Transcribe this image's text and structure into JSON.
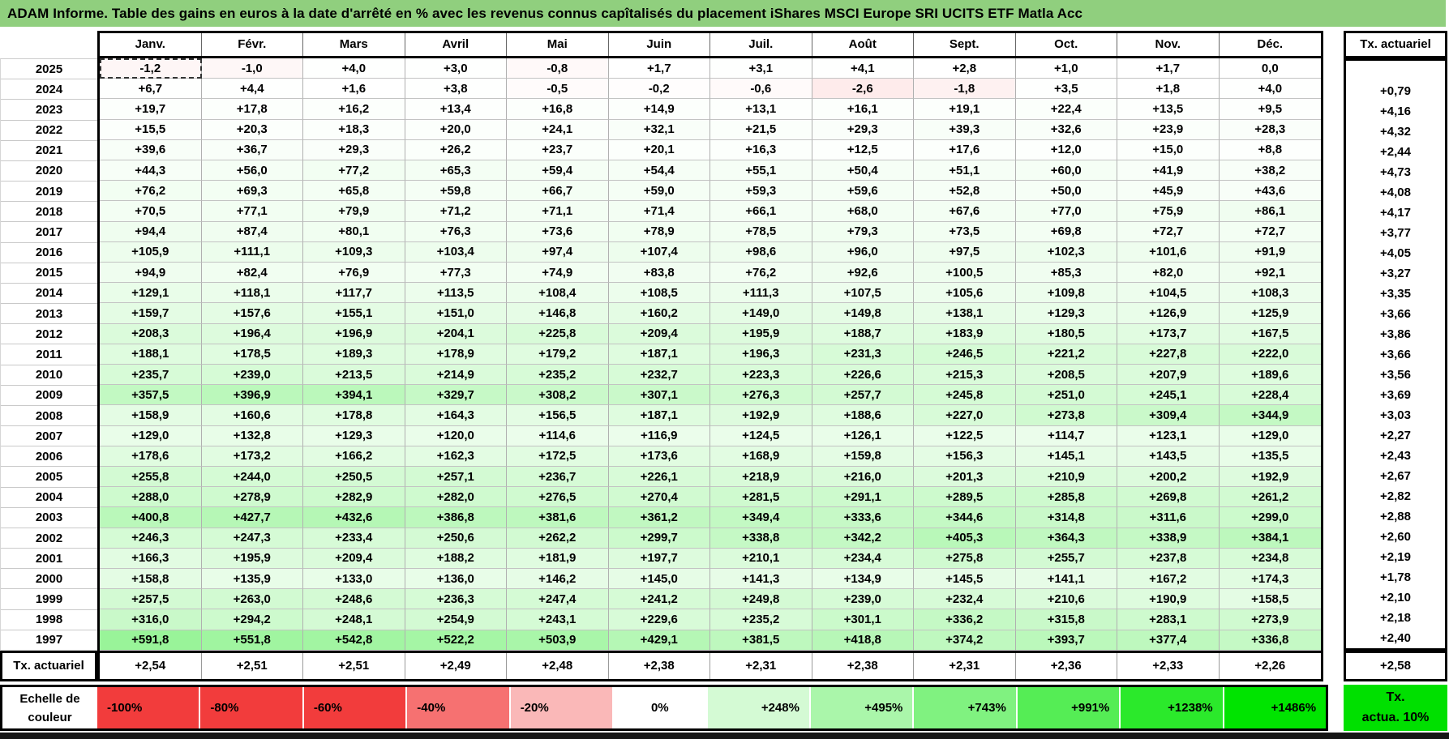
{
  "title": "ADAM Informe. Table des gains en euros à la date d'arrêté en % avec les revenus connus capîtalisés du placement iShares MSCI Europe SRI UCITS ETF Matla Acc",
  "months": [
    "Janv.",
    "Févr.",
    "Mars",
    "Avril",
    "Mai",
    "Juin",
    "Juil.",
    "Août",
    "Sept.",
    "Oct.",
    "Nov.",
    "Déc."
  ],
  "right_column_header": "Tx. actuariel",
  "footer_label": "Tx. actuariel",
  "legend_label_lines": [
    "Echelle de",
    "couleur"
  ],
  "tx_box_lines": [
    "Tx.",
    "actua. 10%"
  ],
  "colors": {
    "title_bg": "#90cf7e",
    "positive_max": "#00e400",
    "negative_max": "#f23c3c",
    "legend_green_box": "#00e000"
  },
  "active_cell": {
    "year": "2025",
    "month": "Janv."
  },
  "rows": [
    {
      "year": "2025",
      "values": [
        -1.2,
        -1.0,
        4.0,
        3.0,
        -0.8,
        1.7,
        3.1,
        4.1,
        2.8,
        1.0,
        1.7,
        0.0
      ],
      "tx": null
    },
    {
      "year": "2024",
      "values": [
        6.7,
        4.4,
        1.6,
        3.8,
        -0.5,
        -0.2,
        -0.6,
        -2.6,
        -1.8,
        3.5,
        1.8,
        4.0
      ],
      "tx": 0.79
    },
    {
      "year": "2023",
      "values": [
        19.7,
        17.8,
        16.2,
        13.4,
        16.8,
        14.9,
        13.1,
        16.1,
        19.1,
        22.4,
        13.5,
        9.5
      ],
      "tx": 4.16
    },
    {
      "year": "2022",
      "values": [
        15.5,
        20.3,
        18.3,
        20.0,
        24.1,
        32.1,
        21.5,
        29.3,
        39.3,
        32.6,
        23.9,
        28.3
      ],
      "tx": 4.32
    },
    {
      "year": "2021",
      "values": [
        39.6,
        36.7,
        29.3,
        26.2,
        23.7,
        20.1,
        16.3,
        12.5,
        17.6,
        12.0,
        15.0,
        8.8
      ],
      "tx": 2.44
    },
    {
      "year": "2020",
      "values": [
        44.3,
        56.0,
        77.2,
        65.3,
        59.4,
        54.4,
        55.1,
        50.4,
        51.1,
        60.0,
        41.9,
        38.2
      ],
      "tx": 4.73
    },
    {
      "year": "2019",
      "values": [
        76.2,
        69.3,
        65.8,
        59.8,
        66.7,
        59.0,
        59.3,
        59.6,
        52.8,
        50.0,
        45.9,
        43.6
      ],
      "tx": 4.08
    },
    {
      "year": "2018",
      "values": [
        70.5,
        77.1,
        79.9,
        71.2,
        71.1,
        71.4,
        66.1,
        68.0,
        67.6,
        77.0,
        75.9,
        86.1
      ],
      "tx": 4.17
    },
    {
      "year": "2017",
      "values": [
        94.4,
        87.4,
        80.1,
        76.3,
        73.6,
        78.9,
        78.5,
        79.3,
        73.5,
        69.8,
        72.7,
        72.7
      ],
      "tx": 3.77
    },
    {
      "year": "2016",
      "values": [
        105.9,
        111.1,
        109.3,
        103.4,
        97.4,
        107.4,
        98.6,
        96.0,
        97.5,
        102.3,
        101.6,
        91.9
      ],
      "tx": 4.05
    },
    {
      "year": "2015",
      "values": [
        94.9,
        82.4,
        76.9,
        77.3,
        74.9,
        83.8,
        76.2,
        92.6,
        100.5,
        85.3,
        82.0,
        92.1
      ],
      "tx": 3.27
    },
    {
      "year": "2014",
      "values": [
        129.1,
        118.1,
        117.7,
        113.5,
        108.4,
        108.5,
        111.3,
        107.5,
        105.6,
        109.8,
        104.5,
        108.3
      ],
      "tx": 3.35
    },
    {
      "year": "2013",
      "values": [
        159.7,
        157.6,
        155.1,
        151.0,
        146.8,
        160.2,
        149.0,
        149.8,
        138.1,
        129.3,
        126.9,
        125.9
      ],
      "tx": 3.66
    },
    {
      "year": "2012",
      "values": [
        208.3,
        196.4,
        196.9,
        204.1,
        225.8,
        209.4,
        195.9,
        188.7,
        183.9,
        180.5,
        173.7,
        167.5
      ],
      "tx": 3.86
    },
    {
      "year": "2011",
      "values": [
        188.1,
        178.5,
        189.3,
        178.9,
        179.2,
        187.1,
        196.3,
        231.3,
        246.5,
        221.2,
        227.8,
        222.0
      ],
      "tx": 3.66
    },
    {
      "year": "2010",
      "values": [
        235.7,
        239.0,
        213.5,
        214.9,
        235.2,
        232.7,
        223.3,
        226.6,
        215.3,
        208.5,
        207.9,
        189.6
      ],
      "tx": 3.56
    },
    {
      "year": "2009",
      "values": [
        357.5,
        396.9,
        394.1,
        329.7,
        308.2,
        307.1,
        276.3,
        257.7,
        245.8,
        251.0,
        245.1,
        228.4
      ],
      "tx": 3.69
    },
    {
      "year": "2008",
      "values": [
        158.9,
        160.6,
        178.8,
        164.3,
        156.5,
        187.1,
        192.9,
        188.6,
        227.0,
        273.8,
        309.4,
        344.9
      ],
      "tx": 3.03
    },
    {
      "year": "2007",
      "values": [
        129.0,
        132.8,
        129.3,
        120.0,
        114.6,
        116.9,
        124.5,
        126.1,
        122.5,
        114.7,
        123.1,
        129.0
      ],
      "tx": 2.27
    },
    {
      "year": "2006",
      "values": [
        178.6,
        173.2,
        166.2,
        162.3,
        172.5,
        173.6,
        168.9,
        159.8,
        156.3,
        145.1,
        143.5,
        135.5
      ],
      "tx": 2.43
    },
    {
      "year": "2005",
      "values": [
        255.8,
        244.0,
        250.5,
        257.1,
        236.7,
        226.1,
        218.9,
        216.0,
        201.3,
        210.9,
        200.2,
        192.9
      ],
      "tx": 2.67
    },
    {
      "year": "2004",
      "values": [
        288.0,
        278.9,
        282.9,
        282.0,
        276.5,
        270.4,
        281.5,
        291.1,
        289.5,
        285.8,
        269.8,
        261.2
      ],
      "tx": 2.82
    },
    {
      "year": "2003",
      "values": [
        400.8,
        427.7,
        432.6,
        386.8,
        381.6,
        361.2,
        349.4,
        333.6,
        344.6,
        314.8,
        311.6,
        299.0
      ],
      "tx": 2.88
    },
    {
      "year": "2002",
      "values": [
        246.3,
        247.3,
        233.4,
        250.6,
        262.2,
        299.7,
        338.8,
        342.2,
        405.3,
        364.3,
        338.9,
        384.1
      ],
      "tx": 2.6
    },
    {
      "year": "2001",
      "values": [
        166.3,
        195.9,
        209.4,
        188.2,
        181.9,
        197.7,
        210.1,
        234.4,
        275.8,
        255.7,
        237.8,
        234.8
      ],
      "tx": 2.19
    },
    {
      "year": "2000",
      "values": [
        158.8,
        135.9,
        133.0,
        136.0,
        146.2,
        145.0,
        141.3,
        134.9,
        145.5,
        141.1,
        167.2,
        174.3
      ],
      "tx": 1.78
    },
    {
      "year": "1999",
      "values": [
        257.5,
        263.0,
        248.6,
        236.3,
        247.4,
        241.2,
        249.8,
        239.0,
        232.4,
        210.6,
        190.9,
        158.5
      ],
      "tx": 2.1
    },
    {
      "year": "1998",
      "values": [
        316.0,
        294.2,
        248.1,
        254.9,
        243.1,
        229.6,
        235.2,
        301.1,
        336.2,
        315.8,
        283.1,
        273.9
      ],
      "tx": 2.18
    },
    {
      "year": "1997",
      "values": [
        591.8,
        551.8,
        542.8,
        522.2,
        503.9,
        429.1,
        381.5,
        418.8,
        374.2,
        393.7,
        377.4,
        336.8
      ],
      "tx": 2.4
    }
  ],
  "footer_values": [
    2.54,
    2.51,
    2.51,
    2.49,
    2.48,
    2.38,
    2.31,
    2.38,
    2.31,
    2.36,
    2.33,
    2.26
  ],
  "footer_tx": 2.58,
  "legend_cells": [
    {
      "label": "-100%",
      "value": -100
    },
    {
      "label": "-80%",
      "value": -80
    },
    {
      "label": "-60%",
      "value": -60
    },
    {
      "label": "-40%",
      "value": -40
    },
    {
      "label": "-20%",
      "value": -20
    },
    {
      "label": "0%",
      "value": 0
    },
    {
      "label": "+248%",
      "value": 248
    },
    {
      "label": "+495%",
      "value": 495
    },
    {
      "label": "+743%",
      "value": 743
    },
    {
      "label": "+991%",
      "value": 991
    },
    {
      "label": "+1238%",
      "value": 1238
    },
    {
      "label": "+1486%",
      "value": 1486
    }
  ]
}
